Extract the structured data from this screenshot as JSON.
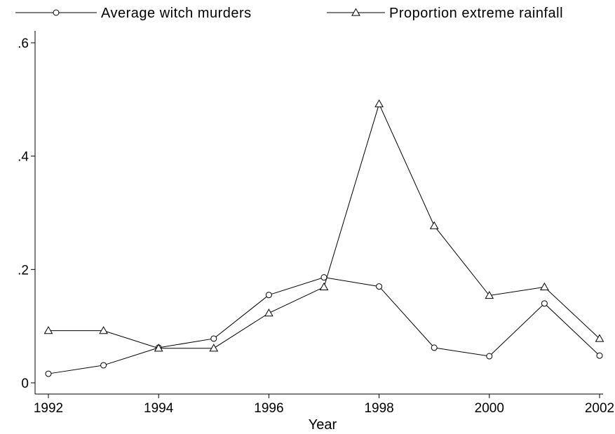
{
  "chart_data": {
    "type": "line",
    "title": "",
    "xlabel": "Year",
    "ylabel": "",
    "x": [
      1992,
      1993,
      1994,
      1995,
      1996,
      1997,
      1998,
      1999,
      2000,
      2001,
      2002
    ],
    "xlim": [
      1992,
      2002
    ],
    "ylim": [
      0,
      0.6
    ],
    "x_ticks": [
      {
        "value": 1992,
        "label": "1992"
      },
      {
        "value": 1994,
        "label": "1994"
      },
      {
        "value": 1996,
        "label": "1996"
      },
      {
        "value": 1998,
        "label": "1998"
      },
      {
        "value": 2000,
        "label": "2000"
      },
      {
        "value": 2002,
        "label": "2002"
      }
    ],
    "y_ticks": [
      {
        "value": 0,
        "label": "0"
      },
      {
        "value": 0.2,
        "label": ".2"
      },
      {
        "value": 0.4,
        "label": ".4"
      },
      {
        "value": 0.6,
        "label": ".6"
      }
    ],
    "grid": false,
    "legend_position": "top",
    "series": [
      {
        "name": "Average witch murders",
        "marker": "circle",
        "color": "#000000",
        "values": [
          0.016,
          0.031,
          0.062,
          0.078,
          0.155,
          0.186,
          0.17,
          0.062,
          0.047,
          0.14,
          0.048
        ]
      },
      {
        "name": "Proportion extreme rainfall",
        "marker": "triangle",
        "color": "#000000",
        "values": [
          0.092,
          0.092,
          0.061,
          0.061,
          0.123,
          0.169,
          0.492,
          0.277,
          0.154,
          0.169,
          0.078
        ]
      }
    ]
  }
}
